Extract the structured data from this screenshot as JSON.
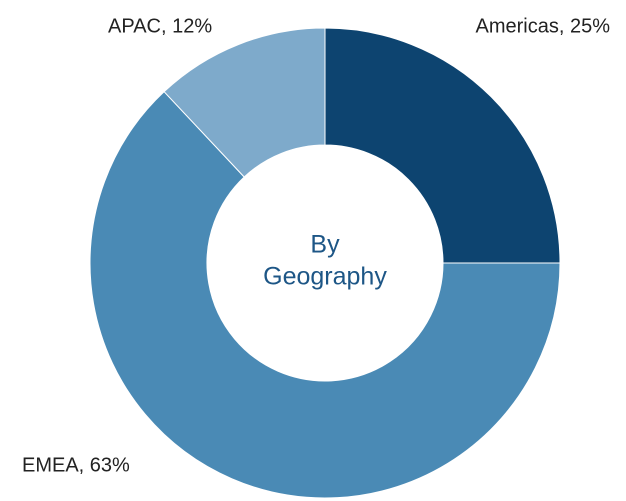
{
  "chart_data": {
    "type": "donut",
    "categories": [
      "Americas",
      "EMEA",
      "APAC"
    ],
    "values": [
      25,
      63,
      12
    ],
    "value_labels": [
      "Americas, 25%",
      "EMEA, 63%",
      "APAC, 12%"
    ],
    "colors": [
      "#0d4470",
      "#4a8ab5",
      "#7eaacb"
    ],
    "center_text": [
      "By",
      "Geography"
    ]
  }
}
